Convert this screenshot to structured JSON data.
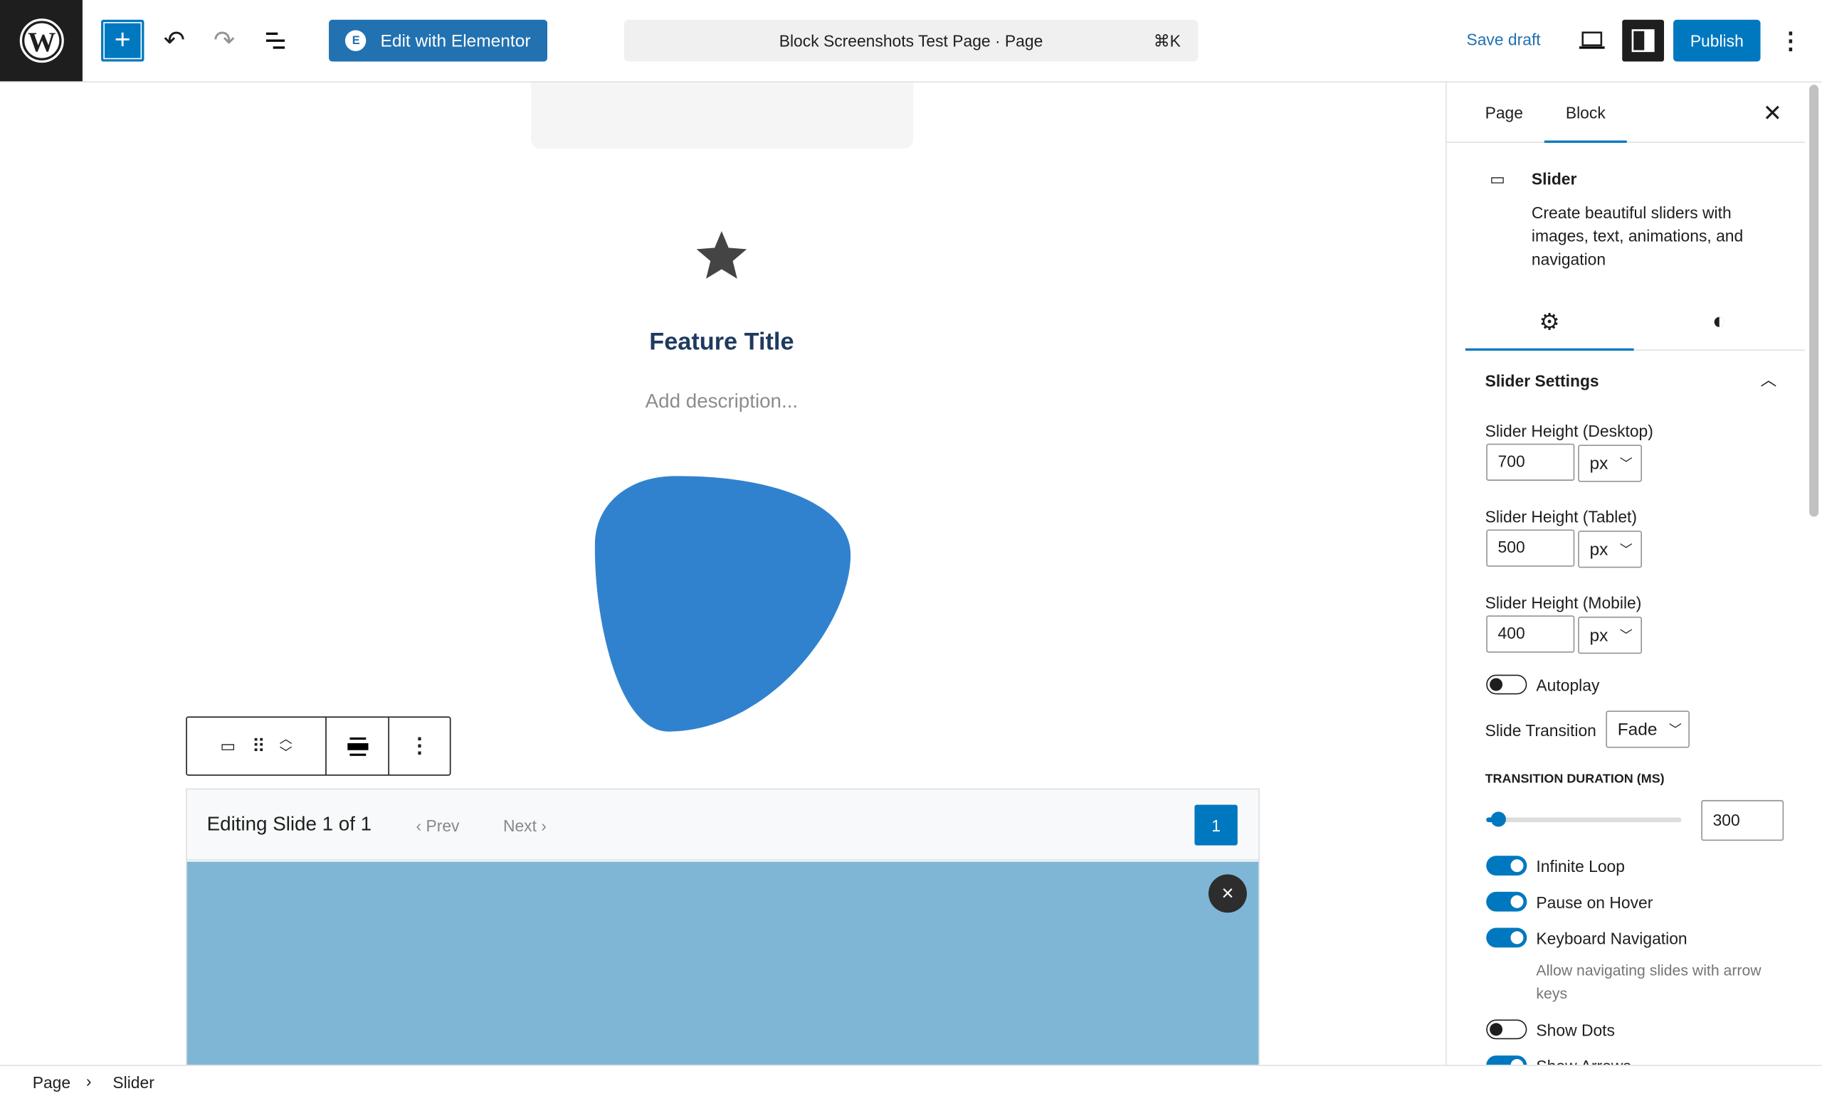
{
  "topbar": {
    "logo": "wordpress-logo",
    "add_block": "+",
    "edit_elementor": "Edit with Elementor",
    "command_title": "Block Screenshots Test Page · Page",
    "command_shortcut": "⌘K",
    "save_draft": "Save draft",
    "publish": "Publish"
  },
  "canvas": {
    "feature_title": "Feature Title",
    "description_placeholder": "Add description...",
    "slide_editor": {
      "status": "Editing Slide 1 of 1",
      "prev": "‹ Prev",
      "next": "Next ›",
      "slide_number": "1",
      "close": "×"
    }
  },
  "sidebar": {
    "tabs": [
      "Page",
      "Block"
    ],
    "active_tab": "Block",
    "block": {
      "name": "Slider",
      "description": "Create beautiful sliders with images, text, animations, and navigation"
    },
    "panel_title": "Slider Settings",
    "height_desktop": {
      "label": "Slider Height (Desktop)",
      "value": "700",
      "unit": "px"
    },
    "height_tablet": {
      "label": "Slider Height (Tablet)",
      "value": "500",
      "unit": "px"
    },
    "height_mobile": {
      "label": "Slider Height (Mobile)",
      "value": "400",
      "unit": "px"
    },
    "autoplay": {
      "label": "Autoplay",
      "on": false
    },
    "transition": {
      "label": "Slide Transition",
      "value": "Fade"
    },
    "duration": {
      "label": "TRANSITION DURATION (MS)",
      "value": "300",
      "min": 0,
      "max": 5000
    },
    "infinite_loop": {
      "label": "Infinite Loop",
      "on": true
    },
    "pause_hover": {
      "label": "Pause on Hover",
      "on": true
    },
    "keyboard_nav": {
      "label": "Keyboard Navigation",
      "on": true,
      "help": "Allow navigating slides with arrow keys"
    },
    "show_dots": {
      "label": "Show Dots",
      "on": false
    },
    "show_arrows": {
      "label": "Show Arrows",
      "on": true
    }
  },
  "footer": {
    "breadcrumb": [
      "Page",
      "Slider"
    ]
  },
  "colors": {
    "accent": "#2271b1",
    "toggle_on": "#0078bf",
    "blob": "#3182ce",
    "slide_bg": "#7fb6d6",
    "title": "#1e3a5f"
  }
}
